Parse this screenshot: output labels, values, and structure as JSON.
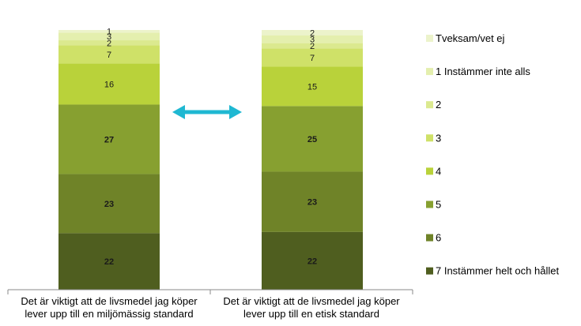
{
  "chart_data": {
    "type": "bar",
    "stacked": true,
    "categories": [
      [
        "Det är viktigt att de livsmedel jag köper",
        "lever upp till en miljömässig standard"
      ],
      [
        "Det är viktigt att de livsmedel jag köper",
        "lever upp till en etisk standard"
      ]
    ],
    "series": [
      {
        "name": "7 Instämmer helt och hållet",
        "color": "#4f5e1f",
        "values": [
          22,
          22
        ]
      },
      {
        "name": "6",
        "color": "#6f8328",
        "values": [
          23,
          23
        ]
      },
      {
        "name": "5",
        "color": "#87a030",
        "values": [
          27,
          25
        ]
      },
      {
        "name": "4",
        "color": "#b9d23a",
        "values": [
          16,
          15
        ]
      },
      {
        "name": "3",
        "color": "#cfe168",
        "values": [
          7,
          7
        ]
      },
      {
        "name": "2",
        "color": "#dbe98f",
        "values": [
          2,
          2
        ]
      },
      {
        "name": "1 Instämmer inte alls",
        "color": "#e4efae",
        "values": [
          3,
          3
        ]
      },
      {
        "name": "Tveksam/vet ej",
        "color": "#ecf3cb",
        "values": [
          1,
          2
        ]
      }
    ],
    "legend_position": "right",
    "grid": false,
    "annotation": "double-headed arrow between bars",
    "arrow_color": "#1fb8d2"
  }
}
